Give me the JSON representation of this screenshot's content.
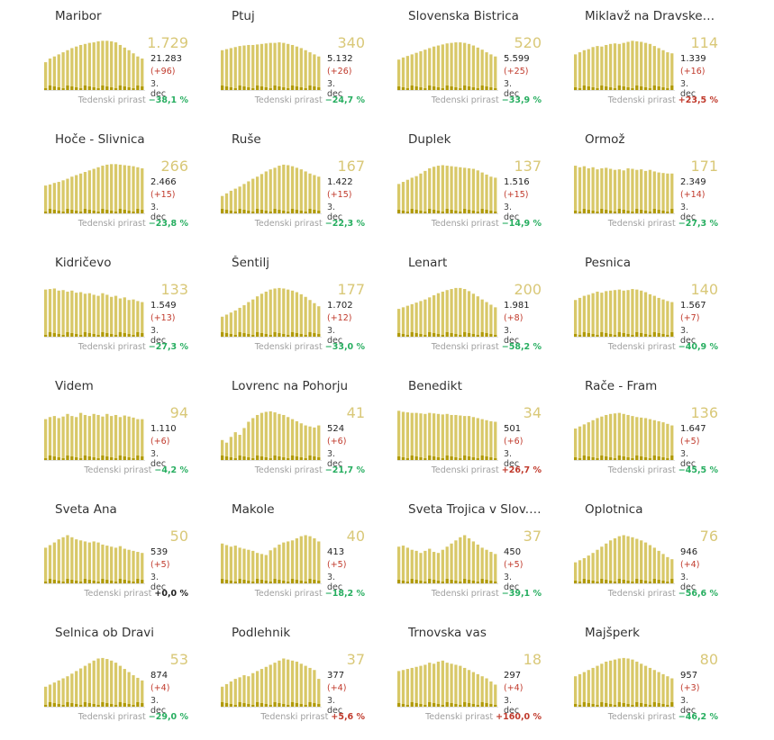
{
  "labels": {
    "weekly": "Tedenski prirast"
  },
  "colors": {
    "bar": "#d8c868",
    "bar_light": "#e6dc9a",
    "bar_low": "#b09a08",
    "baseline": "#e0e0e0"
  },
  "chart_data": [
    {
      "type": "bar",
      "title": "Maribor",
      "big": "1.729",
      "total": "21.283",
      "delta": "(+96)",
      "date": "3. dec",
      "weekly": "−38,1 %",
      "trend": "neg",
      "values": [
        0.55,
        0.62,
        0.66,
        0.7,
        0.74,
        0.78,
        0.82,
        0.85,
        0.88,
        0.9,
        0.92,
        0.93,
        0.95,
        0.96,
        0.96,
        0.95,
        0.93,
        0.88,
        0.83,
        0.78,
        0.72,
        0.66,
        0.62
      ]
    },
    {
      "type": "bar",
      "title": "Ptuj",
      "big": "340",
      "total": "5.132",
      "delta": "(+26)",
      "date": "3. dec",
      "weekly": "−24,7 %",
      "trend": "neg",
      "values": [
        0.78,
        0.8,
        0.82,
        0.84,
        0.86,
        0.87,
        0.88,
        0.88,
        0.89,
        0.9,
        0.91,
        0.92,
        0.92,
        0.93,
        0.92,
        0.9,
        0.88,
        0.85,
        0.82,
        0.78,
        0.74,
        0.7,
        0.66
      ]
    },
    {
      "type": "bar",
      "title": "Slovenska Bistrica",
      "big": "520",
      "total": "5.599",
      "delta": "(+25)",
      "date": "3. dec",
      "weekly": "−33,9 %",
      "trend": "neg",
      "values": [
        0.6,
        0.64,
        0.67,
        0.7,
        0.73,
        0.76,
        0.79,
        0.82,
        0.85,
        0.87,
        0.89,
        0.91,
        0.92,
        0.93,
        0.93,
        0.92,
        0.9,
        0.87,
        0.83,
        0.79,
        0.74,
        0.7,
        0.66
      ]
    },
    {
      "type": "bar",
      "title": "Miklavž na Dravske…",
      "big": "114",
      "total": "1.339",
      "delta": "(+16)",
      "date": "3. dec",
      "weekly": "+23,5 %",
      "trend": "pos",
      "values": [
        0.7,
        0.74,
        0.78,
        0.8,
        0.84,
        0.86,
        0.85,
        0.88,
        0.9,
        0.91,
        0.9,
        0.92,
        0.94,
        0.96,
        0.95,
        0.94,
        0.92,
        0.9,
        0.86,
        0.82,
        0.78,
        0.74,
        0.72
      ]
    },
    {
      "type": "bar",
      "title": "Hoče - Slivnica",
      "big": "266",
      "total": "2.466",
      "delta": "(+15)",
      "date": "3. dec",
      "weekly": "−23,8 %",
      "trend": "neg",
      "values": [
        0.55,
        0.57,
        0.6,
        0.62,
        0.65,
        0.68,
        0.72,
        0.75,
        0.78,
        0.81,
        0.84,
        0.87,
        0.9,
        0.93,
        0.95,
        0.96,
        0.96,
        0.95,
        0.94,
        0.93,
        0.92,
        0.9,
        0.88
      ]
    },
    {
      "type": "bar",
      "title": "Ruše",
      "big": "167",
      "total": "1.422",
      "delta": "(+15)",
      "date": "3. dec",
      "weekly": "−22,3 %",
      "trend": "neg",
      "values": [
        0.35,
        0.4,
        0.45,
        0.49,
        0.53,
        0.58,
        0.63,
        0.68,
        0.72,
        0.77,
        0.82,
        0.86,
        0.89,
        0.93,
        0.95,
        0.94,
        0.92,
        0.89,
        0.86,
        0.82,
        0.78,
        0.75,
        0.72
      ]
    },
    {
      "type": "bar",
      "title": "Duplek",
      "big": "137",
      "total": "1.516",
      "delta": "(+15)",
      "date": "3. dec",
      "weekly": "−14,9 %",
      "trend": "neg",
      "values": [
        0.58,
        0.62,
        0.66,
        0.7,
        0.73,
        0.78,
        0.83,
        0.88,
        0.91,
        0.93,
        0.94,
        0.93,
        0.92,
        0.91,
        0.9,
        0.89,
        0.88,
        0.87,
        0.84,
        0.8,
        0.76,
        0.72,
        0.7
      ]
    },
    {
      "type": "bar",
      "title": "Ormož",
      "big": "171",
      "total": "2.349",
      "delta": "(+14)",
      "date": "3. dec",
      "weekly": "−27,3 %",
      "trend": "neg",
      "values": [
        0.93,
        0.9,
        0.92,
        0.88,
        0.9,
        0.86,
        0.88,
        0.89,
        0.87,
        0.85,
        0.86,
        0.84,
        0.88,
        0.87,
        0.85,
        0.86,
        0.83,
        0.85,
        0.82,
        0.8,
        0.79,
        0.78,
        0.78
      ]
    },
    {
      "type": "bar",
      "title": "Kidričevo",
      "big": "133",
      "total": "1.549",
      "delta": "(+13)",
      "date": "3. dec",
      "weekly": "−27,3 %",
      "trend": "neg",
      "values": [
        0.92,
        0.93,
        0.94,
        0.9,
        0.91,
        0.88,
        0.9,
        0.86,
        0.87,
        0.84,
        0.85,
        0.82,
        0.8,
        0.85,
        0.82,
        0.78,
        0.8,
        0.75,
        0.77,
        0.72,
        0.73,
        0.7,
        0.68
      ]
    },
    {
      "type": "bar",
      "title": "Šentilj",
      "big": "177",
      "total": "1.702",
      "delta": "(+12)",
      "date": "3. dec",
      "weekly": "−33,0 %",
      "trend": "neg",
      "values": [
        0.4,
        0.44,
        0.48,
        0.52,
        0.57,
        0.62,
        0.68,
        0.73,
        0.79,
        0.84,
        0.88,
        0.92,
        0.94,
        0.95,
        0.94,
        0.92,
        0.9,
        0.87,
        0.83,
        0.78,
        0.72,
        0.66,
        0.6
      ]
    },
    {
      "type": "bar",
      "title": "Lenart",
      "big": "200",
      "total": "1.981",
      "delta": "(+8)",
      "date": "3. dec",
      "weekly": "−58,2 %",
      "trend": "neg",
      "values": [
        0.55,
        0.58,
        0.61,
        0.64,
        0.67,
        0.7,
        0.73,
        0.77,
        0.81,
        0.85,
        0.88,
        0.91,
        0.93,
        0.95,
        0.95,
        0.93,
        0.89,
        0.84,
        0.79,
        0.73,
        0.68,
        0.63,
        0.58
      ]
    },
    {
      "type": "bar",
      "title": "Pesnica",
      "big": "140",
      "total": "1.567",
      "delta": "(+7)",
      "date": "3. dec",
      "weekly": "−40,9 %",
      "trend": "neg",
      "values": [
        0.72,
        0.76,
        0.8,
        0.82,
        0.85,
        0.88,
        0.86,
        0.89,
        0.9,
        0.91,
        0.92,
        0.9,
        0.91,
        0.93,
        0.92,
        0.9,
        0.87,
        0.83,
        0.8,
        0.76,
        0.73,
        0.7,
        0.68
      ]
    },
    {
      "type": "bar",
      "title": "Videm",
      "big": "94",
      "total": "1.110",
      "delta": "(+6)",
      "date": "3. dec",
      "weekly": "−4,2 %",
      "trend": "neg",
      "values": [
        0.8,
        0.84,
        0.86,
        0.82,
        0.85,
        0.9,
        0.86,
        0.84,
        0.92,
        0.88,
        0.86,
        0.9,
        0.88,
        0.85,
        0.9,
        0.86,
        0.88,
        0.84,
        0.87,
        0.85,
        0.83,
        0.8,
        0.8
      ]
    },
    {
      "type": "bar",
      "title": "Lovrenc na Pohorju",
      "big": "41",
      "total": "524",
      "delta": "(+6)",
      "date": "3. dec",
      "weekly": "−21,7 %",
      "trend": "neg",
      "values": [
        0.4,
        0.35,
        0.46,
        0.55,
        0.5,
        0.63,
        0.75,
        0.82,
        0.88,
        0.92,
        0.94,
        0.95,
        0.93,
        0.9,
        0.88,
        0.84,
        0.8,
        0.76,
        0.72,
        0.68,
        0.66,
        0.64,
        0.68
      ]
    },
    {
      "type": "bar",
      "title": "Benedikt",
      "big": "34",
      "total": "501",
      "delta": "(+6)",
      "date": "3. dec",
      "weekly": "+26,7 %",
      "trend": "pos",
      "values": [
        0.96,
        0.94,
        0.93,
        0.92,
        0.92,
        0.91,
        0.9,
        0.92,
        0.91,
        0.9,
        0.89,
        0.9,
        0.88,
        0.88,
        0.87,
        0.86,
        0.86,
        0.84,
        0.82,
        0.8,
        0.78,
        0.76,
        0.75
      ]
    },
    {
      "type": "bar",
      "title": "Rače - Fram",
      "big": "136",
      "total": "1.647",
      "delta": "(+5)",
      "date": "3. dec",
      "weekly": "−45,5 %",
      "trend": "neg",
      "values": [
        0.62,
        0.66,
        0.7,
        0.74,
        0.78,
        0.82,
        0.85,
        0.88,
        0.9,
        0.91,
        0.92,
        0.9,
        0.88,
        0.86,
        0.84,
        0.83,
        0.82,
        0.8,
        0.78,
        0.76,
        0.74,
        0.71,
        0.68
      ]
    },
    {
      "type": "bar",
      "title": "Sveta Ana",
      "big": "50",
      "total": "539",
      "delta": "(+5)",
      "date": "3. dec",
      "weekly": "+0,0 %",
      "trend": "zero",
      "values": [
        0.7,
        0.75,
        0.8,
        0.86,
        0.9,
        0.94,
        0.9,
        0.86,
        0.84,
        0.82,
        0.8,
        0.82,
        0.8,
        0.76,
        0.74,
        0.72,
        0.7,
        0.73,
        0.68,
        0.66,
        0.64,
        0.62,
        0.6
      ]
    },
    {
      "type": "bar",
      "title": "Makole",
      "big": "40",
      "total": "413",
      "delta": "(+5)",
      "date": "3. dec",
      "weekly": "−18,2 %",
      "trend": "neg",
      "values": [
        0.78,
        0.75,
        0.72,
        0.74,
        0.7,
        0.68,
        0.66,
        0.64,
        0.6,
        0.58,
        0.56,
        0.65,
        0.7,
        0.76,
        0.8,
        0.82,
        0.84,
        0.88,
        0.92,
        0.94,
        0.92,
        0.88,
        0.82
      ]
    },
    {
      "type": "bar",
      "title": "Sveta Trojica v Slov.…",
      "big": "37",
      "total": "450",
      "delta": "(+5)",
      "date": "3. dec",
      "weekly": "−39,1 %",
      "trend": "neg",
      "values": [
        0.72,
        0.74,
        0.7,
        0.66,
        0.64,
        0.6,
        0.64,
        0.68,
        0.62,
        0.6,
        0.66,
        0.72,
        0.78,
        0.84,
        0.9,
        0.94,
        0.88,
        0.82,
        0.76,
        0.7,
        0.66,
        0.62,
        0.58
      ]
    },
    {
      "type": "bar",
      "title": "Oplotnica",
      "big": "76",
      "total": "946",
      "delta": "(+4)",
      "date": "3. dec",
      "weekly": "−56,6 %",
      "trend": "neg",
      "values": [
        0.42,
        0.46,
        0.5,
        0.55,
        0.6,
        0.66,
        0.72,
        0.78,
        0.84,
        0.88,
        0.92,
        0.94,
        0.92,
        0.9,
        0.87,
        0.84,
        0.8,
        0.75,
        0.7,
        0.64,
        0.58,
        0.52,
        0.48
      ]
    },
    {
      "type": "bar",
      "title": "Selnica ob Dravi",
      "big": "53",
      "total": "874",
      "delta": "(+4)",
      "date": "3. dec",
      "weekly": "−29,0 %",
      "trend": "neg",
      "values": [
        0.4,
        0.44,
        0.48,
        0.52,
        0.56,
        0.6,
        0.65,
        0.7,
        0.75,
        0.8,
        0.85,
        0.9,
        0.94,
        0.95,
        0.93,
        0.9,
        0.86,
        0.8,
        0.74,
        0.68,
        0.62,
        0.57,
        0.52
      ]
    },
    {
      "type": "bar",
      "title": "Podlehnik",
      "big": "37",
      "total": "377",
      "delta": "(+4)",
      "date": "3. dec",
      "weekly": "+5,6 %",
      "trend": "pos",
      "values": [
        0.4,
        0.45,
        0.5,
        0.55,
        0.58,
        0.62,
        0.6,
        0.66,
        0.7,
        0.74,
        0.78,
        0.82,
        0.86,
        0.9,
        0.94,
        0.92,
        0.9,
        0.88,
        0.84,
        0.8,
        0.76,
        0.72,
        0.55
      ]
    },
    {
      "type": "bar",
      "title": "Trnovska vas",
      "big": "18",
      "total": "297",
      "delta": "(+4)",
      "date": "3. dec",
      "weekly": "+160,0 %",
      "trend": "pos",
      "values": [
        0.7,
        0.72,
        0.74,
        0.76,
        0.78,
        0.8,
        0.82,
        0.86,
        0.84,
        0.88,
        0.9,
        0.86,
        0.84,
        0.82,
        0.8,
        0.76,
        0.72,
        0.68,
        0.64,
        0.6,
        0.56,
        0.5,
        0.44
      ]
    },
    {
      "type": "bar",
      "title": "Majšperk",
      "big": "80",
      "total": "957",
      "delta": "(+3)",
      "date": "3. dec",
      "weekly": "−46,2 %",
      "trend": "neg",
      "values": [
        0.6,
        0.64,
        0.68,
        0.72,
        0.76,
        0.8,
        0.84,
        0.88,
        0.9,
        0.92,
        0.94,
        0.95,
        0.94,
        0.92,
        0.88,
        0.84,
        0.8,
        0.76,
        0.72,
        0.68,
        0.64,
        0.6,
        0.56
      ]
    }
  ]
}
